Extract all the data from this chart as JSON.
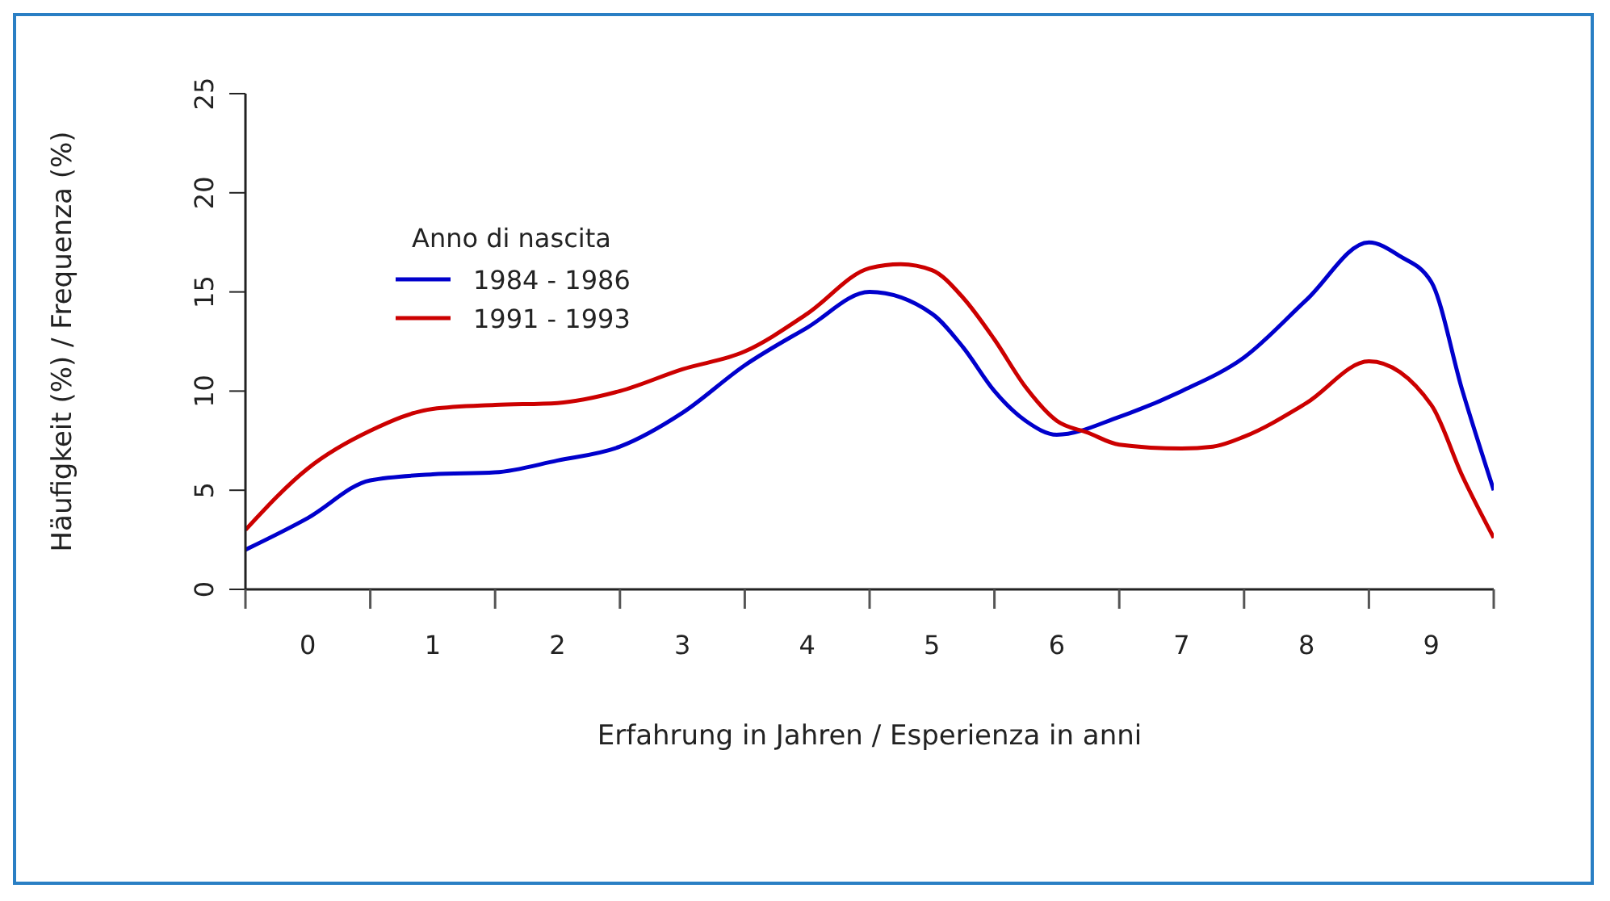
{
  "chart_data": {
    "type": "line",
    "xlabel": "Erfahrung in Jahren / Esperienza in anni",
    "ylabel": "Häufigkeit (%) / Frequenza (%)",
    "legend_title": "Anno di nascita",
    "legend": "top left",
    "grid": false,
    "marker": "none",
    "line_style": "solid",
    "xlim": [
      0,
      10
    ],
    "xticks": [
      {
        "value": 0,
        "label": null
      },
      {
        "value": 0.5,
        "label": "0"
      },
      {
        "value": 1,
        "label": null
      },
      {
        "value": 1.5,
        "label": "1"
      },
      {
        "value": 2,
        "label": null
      },
      {
        "value": 2.5,
        "label": "2"
      },
      {
        "value": 3,
        "label": null
      },
      {
        "value": 3.5,
        "label": "3"
      },
      {
        "value": 4,
        "label": null
      },
      {
        "value": 4.5,
        "label": "4"
      },
      {
        "value": 5,
        "label": null
      },
      {
        "value": 5.5,
        "label": "5"
      },
      {
        "value": 6,
        "label": null
      },
      {
        "value": 6.5,
        "label": "6"
      },
      {
        "value": 7,
        "label": null
      },
      {
        "value": 7.5,
        "label": "7"
      },
      {
        "value": 8,
        "label": null
      },
      {
        "value": 8.5,
        "label": "8"
      },
      {
        "value": 9,
        "label": null
      },
      {
        "value": 9.5,
        "label": "9"
      },
      {
        "value": 10,
        "label": null
      }
    ],
    "ylim": [
      0,
      25
    ],
    "yticks": [
      0,
      5,
      10,
      15,
      20,
      25
    ],
    "series": [
      {
        "name": "1984 - 1986",
        "color": "#0000cc",
        "x": [
          0,
          0.5,
          1,
          1.5,
          2,
          2.5,
          3,
          3.5,
          4,
          4.5,
          5,
          5.5,
          5.75,
          6,
          6.25,
          6.5,
          7,
          7.5,
          8,
          8.5,
          9,
          9.25,
          9.5,
          9.75,
          10
        ],
        "values": [
          2.0,
          3.6,
          5.5,
          5.8,
          5.9,
          6.5,
          7.2,
          8.9,
          11.3,
          13.2,
          15.0,
          13.9,
          12.2,
          10.0,
          8.5,
          7.8,
          8.7,
          10.0,
          11.7,
          14.6,
          17.5,
          16.8,
          15.5,
          10.0,
          5.0
        ]
      },
      {
        "name": "1991 - 1993",
        "color": "#cc0000",
        "x": [
          0,
          0.5,
          1,
          1.5,
          2,
          2.5,
          3,
          3.5,
          4,
          4.5,
          5,
          5.25,
          5.5,
          5.75,
          6,
          6.25,
          6.5,
          6.75,
          7,
          7.5,
          7.75,
          8,
          8.5,
          9,
          9.5,
          9.75,
          10
        ],
        "values": [
          3.0,
          6.1,
          8.0,
          9.1,
          9.3,
          9.4,
          10.0,
          11.1,
          12.0,
          13.9,
          16.2,
          16.4,
          16.1,
          14.7,
          12.6,
          10.2,
          8.5,
          7.9,
          7.3,
          7.1,
          7.2,
          7.7,
          9.4,
          11.5,
          9.3,
          5.7,
          2.6
        ]
      }
    ]
  }
}
